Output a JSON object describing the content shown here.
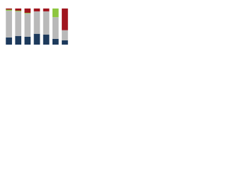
{
  "chart_data": {
    "type": "stacked-bar",
    "categories": [
      null,
      null,
      null,
      null,
      null,
      null,
      null
    ],
    "series": [
      {
        "color": "#1d3a5c",
        "values": [
          20,
          24,
          22,
          30,
          28,
          16,
          12
        ]
      },
      {
        "color": "#b9b9b9",
        "values": [
          74,
          68,
          64,
          62,
          64,
          60,
          28
        ]
      },
      {
        "color": "#8dc63f",
        "values": [
          3,
          2,
          2,
          0,
          0,
          24,
          0
        ]
      },
      {
        "color": "#a0151e",
        "values": [
          3,
          6,
          12,
          8,
          8,
          0,
          60
        ]
      }
    ],
    "ylim": [
      0,
      100
    ]
  }
}
